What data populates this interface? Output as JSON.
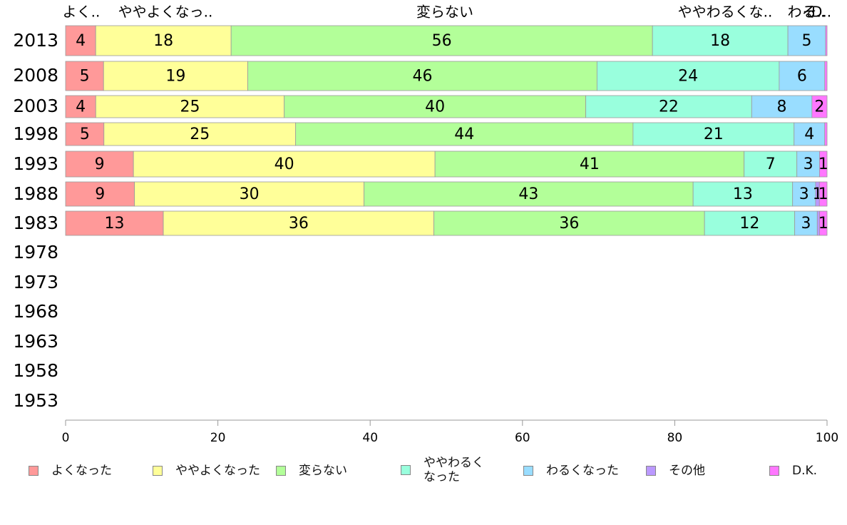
{
  "chart_data": {
    "type": "bar",
    "orientation": "horizontal",
    "stacked": true,
    "categories": [
      "2013",
      "2008",
      "2003",
      "1998",
      "1993",
      "1988",
      "1983",
      "1978",
      "1973",
      "1968",
      "1963",
      "1958",
      "1953"
    ],
    "series": [
      {
        "name": "よくなった",
        "color": "#ff9999",
        "values": [
          4,
          5,
          4,
          5,
          9,
          9,
          13,
          null,
          null,
          null,
          null,
          null,
          null
        ]
      },
      {
        "name": "ややよくなった",
        "color": "#ffff99",
        "values": [
          18,
          19,
          25,
          25,
          40,
          30,
          36,
          null,
          null,
          null,
          null,
          null,
          null
        ]
      },
      {
        "name": "変らない",
        "color": "#b3ff99",
        "values": [
          56,
          46,
          40,
          44,
          41,
          43,
          36,
          null,
          null,
          null,
          null,
          null,
          null
        ]
      },
      {
        "name": "ややわるくなった",
        "color": "#99ffdd",
        "values": [
          18,
          24,
          22,
          21,
          7,
          13,
          12,
          null,
          null,
          null,
          null,
          null,
          null
        ]
      },
      {
        "name": "わるくなった",
        "color": "#99ddff",
        "values": [
          5,
          6,
          8,
          4,
          3,
          3,
          3,
          null,
          null,
          null,
          null,
          null,
          null
        ]
      },
      {
        "name": "その他",
        "color": "#bb99ff",
        "values": [
          0,
          0,
          0,
          0,
          0,
          0.5,
          0.3,
          null,
          null,
          null,
          null,
          null,
          null
        ]
      },
      {
        "name": "D.K.",
        "color": "#ff77ff",
        "values": [
          0.2,
          0.3,
          2,
          0.3,
          1,
          1,
          1,
          null,
          null,
          null,
          null,
          null,
          null
        ]
      }
    ],
    "data_labels": [
      [
        "4",
        "18",
        "56",
        "18",
        "5",
        "",
        ""
      ],
      [
        "5",
        "19",
        "46",
        "24",
        "6",
        "",
        ""
      ],
      [
        "4",
        "25",
        "40",
        "22",
        "8",
        "",
        "2"
      ],
      [
        "5",
        "25",
        "44",
        "21",
        "4",
        "",
        ""
      ],
      [
        "9",
        "40",
        "41",
        "7",
        "3",
        "",
        "1"
      ],
      [
        "9",
        "30",
        "43",
        "13",
        "3",
        "1",
        "1"
      ],
      [
        "13",
        "36",
        "36",
        "12",
        "3",
        "",
        "1"
      ]
    ],
    "top_labels": [
      "よく..",
      "ややよくなっ..",
      "変らない",
      "ややわるくな..",
      "わる..",
      "そ..",
      "D.."
    ],
    "xlim": [
      0,
      100
    ],
    "xticks": [
      "0",
      "20",
      "40",
      "60",
      "80",
      "100"
    ],
    "legend_position": "bottom",
    "legend_labels": [
      "よくなった",
      "ややよくなった",
      "変らない",
      "ややわるく\nなった",
      "わるくなった",
      "その他",
      "D.K."
    ]
  }
}
